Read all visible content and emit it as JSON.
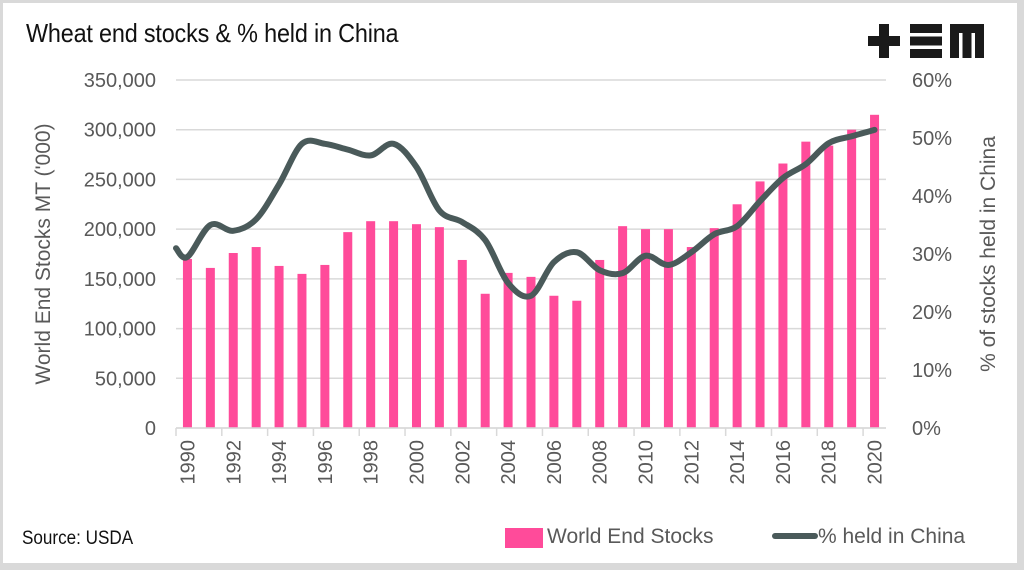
{
  "title": "Wheat end stocks & % held in China",
  "logo": "tem-logo",
  "source": "Source: USDA",
  "colors": {
    "bars": "#ff4b9a",
    "line": "#4a5a5a",
    "grid": "#d9d9d9",
    "text": "#595959"
  },
  "chart_data": {
    "type": "bar",
    "title": "Wheat end stocks & % held in China",
    "categories": [
      1990,
      1991,
      1992,
      1993,
      1994,
      1995,
      1996,
      1997,
      1998,
      1999,
      2000,
      2001,
      2002,
      2003,
      2004,
      2005,
      2006,
      2007,
      2008,
      2009,
      2010,
      2011,
      2012,
      2013,
      2014,
      2015,
      2016,
      2017,
      2018,
      2019,
      2020
    ],
    "x_tick_labels": [
      "1990",
      "1992",
      "1994",
      "1996",
      "1998",
      "2000",
      "2002",
      "2004",
      "2006",
      "2008",
      "2010",
      "2012",
      "2014",
      "2016",
      "2018",
      "2020"
    ],
    "series": [
      {
        "name": "World End Stocks",
        "type": "bar",
        "axis": "left",
        "values": [
          170000,
          161000,
          176000,
          182000,
          163000,
          155000,
          164000,
          197000,
          208000,
          208000,
          205000,
          202000,
          169000,
          135000,
          156000,
          152000,
          133000,
          128000,
          169000,
          203000,
          200000,
          200000,
          182000,
          201000,
          225000,
          248000,
          266000,
          288000,
          284000,
          300000,
          315000
        ]
      },
      {
        "name": "% held in China",
        "type": "line",
        "axis": "right",
        "values": [
          29.5,
          35.0,
          34.0,
          36.0,
          42.0,
          49.0,
          49.0,
          48.0,
          47.0,
          49.0,
          45.0,
          37.5,
          35.5,
          32.4,
          25.0,
          22.8,
          28.6,
          30.3,
          27.2,
          26.7,
          29.7,
          28.1,
          30.3,
          33.4,
          34.8,
          39.1,
          43.1,
          45.5,
          49.1,
          50.3,
          51.4
        ]
      }
    ],
    "xlabel": "",
    "ylabel": "World End Stocks MT ('000)",
    "y2label": "% of stocks held in China",
    "ylim": [
      0,
      350000
    ],
    "y2lim": [
      0,
      60
    ],
    "y_ticks": [
      "0",
      "50,000",
      "100,000",
      "150,000",
      "200,000",
      "250,000",
      "300,000",
      "350,000"
    ],
    "y2_ticks": [
      "0%",
      "10%",
      "20%",
      "30%",
      "40%",
      "50%",
      "60%"
    ],
    "grid": true,
    "legend": "bottom-right"
  },
  "legend": {
    "items": [
      {
        "label": "World End Stocks",
        "symbol": "bar-swatch"
      },
      {
        "label": "% held in China",
        "symbol": "line-swatch"
      }
    ]
  }
}
